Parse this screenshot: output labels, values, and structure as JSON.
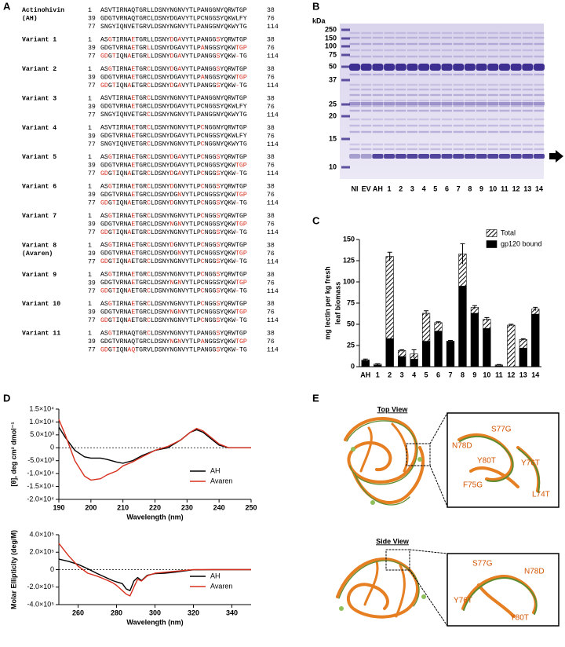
{
  "panels": [
    "A",
    "B",
    "C",
    "D",
    "E"
  ],
  "sequences": {
    "entries": [
      {
        "name": [
          "Actinohivin",
          "(AH)"
        ],
        "lines": [
          {
            "start": 1,
            "seq": "ASVTIRNAQTGRLLDSNYNGNVYTLPANGGNYQRWTGP",
            "end": 38
          },
          {
            "start": 39,
            "seq": "GDGTVRNAQTGRCLDSNYDGAVYTLPCNGGSYQKWLFY",
            "end": 76
          },
          {
            "start": 77,
            "seq": "SNGYIQNVETGRVLDSNYNGNVYTLPANGGNYQKWYTG",
            "end": 114
          }
        ]
      },
      {
        "name": [
          "Variant 1"
        ],
        "lines": [
          {
            "start": 1,
            "seq": "ASGTIRNAETGRLLDSNYDGAVYTLPANGGSYQRWTGP",
            "end": 38
          },
          {
            "start": 39,
            "seq": "GDGTVRNAETGRLLDSNYDGAVYTLPANGGSYQKWTGP",
            "end": 76
          },
          {
            "start": 77,
            "seq": "GDGTIQNAETGRLLDSNYDGAVYTLPANGGSYQKW-TG",
            "end": 114
          }
        ]
      },
      {
        "name": [
          "Variant 2"
        ],
        "lines": [
          {
            "start": 1,
            "seq": "ASGTIRNAETGRCLDSNYDGAVYTLPANGGSYQRWTGP",
            "end": 38
          },
          {
            "start": 39,
            "seq": "GDGTVRNAETGRCLDSNYDGAVYTLPANGGSYQKWTGP",
            "end": 76
          },
          {
            "start": 77,
            "seq": "GDGTIQNAETGRCLDSNYDGAVYTLPANGGSYQKW-TG",
            "end": 114
          }
        ]
      },
      {
        "name": [
          "Variant 3"
        ],
        "lines": [
          {
            "start": 1,
            "seq": "ASVTIRNAETGRCLDSNYNGNVYTLPANGGNYQRWTGP",
            "end": 38
          },
          {
            "start": 39,
            "seq": "GDGTVRNAETGRCLDSNYDGAVYTLPCNGGSYQKWLFY",
            "end": 76
          },
          {
            "start": 77,
            "seq": "SNGYIQNVETGRCLDSNYNGNVYTLPANGGNYQKWYTG",
            "end": 114
          }
        ]
      },
      {
        "name": [
          "Variant 4"
        ],
        "lines": [
          {
            "start": 1,
            "seq": "ASVTIRNAETGRCLDSNYNGNVYTLPCNGGNYQRWTGP",
            "end": 38
          },
          {
            "start": 39,
            "seq": "GDGTVRNAETGRCLDSNYDGAVYTLPCNGGSYQKWLFY",
            "end": 76
          },
          {
            "start": 77,
            "seq": "SNGYIQNVETGRCLDSNYNGNVYTLPCNGGNYQKWYTG",
            "end": 114
          }
        ]
      },
      {
        "name": [
          "Variant 5"
        ],
        "lines": [
          {
            "start": 1,
            "seq": "ASGTIRNAETGRCLDSNYDGAVYTLPCNGGSYQRWTGP",
            "end": 38
          },
          {
            "start": 39,
            "seq": "GDGTVRNAETGRCLDSNYDGAVYTLPCNGGSYQKWTGP",
            "end": 76
          },
          {
            "start": 77,
            "seq": "GDGTIQNAETGRCLDSNYDGAVYTLPCNGGSYQKW-TG",
            "end": 114
          }
        ]
      },
      {
        "name": [
          "Variant 6"
        ],
        "lines": [
          {
            "start": 1,
            "seq": "ASGTIRNAETGRCLDSNYDGNVYTLPCNGGSYQRWTGP",
            "end": 38
          },
          {
            "start": 39,
            "seq": "GDGTVRNAETGRCLDSNYDGNVYTLPCNGGSYQKWTGP",
            "end": 76
          },
          {
            "start": 77,
            "seq": "GDGTIQNAETGRCLDSNYDGNVYTLPCNGGSYQKW-TG",
            "end": 114
          }
        ]
      },
      {
        "name": [
          "Variant 7"
        ],
        "lines": [
          {
            "start": 1,
            "seq": "ASGTIRNAETGRCLDSNYNGNVYTLPCNGGSYQRWTGP",
            "end": 38
          },
          {
            "start": 39,
            "seq": "GDGTVRNAETGRCLDSNYNGNVYTLPCNGGSYQKWTGP",
            "end": 76
          },
          {
            "start": 77,
            "seq": "GDGTIQNAETGRCLDSNYNGNVYTLPCNGGSYQKW-TG",
            "end": 114
          }
        ]
      },
      {
        "name": [
          "Variant 8",
          "(Avaren)"
        ],
        "lines": [
          {
            "start": 1,
            "seq": "ASGTIRNAETGRCLDSNYDGNVYTLPCNGGSYQRWTGP",
            "end": 38
          },
          {
            "start": 39,
            "seq": "GDGTVRNAETGRCLDSNYDGNVYTLPCNGGSYQKWTGP",
            "end": 76
          },
          {
            "start": 77,
            "seq": "GDGTIQNAETGRCLDSNYNGNVYTLPCNGGSYQKW-TG",
            "end": 114
          }
        ]
      },
      {
        "name": [
          "Variant 9"
        ],
        "lines": [
          {
            "start": 1,
            "seq": "ASGTIRNAETGRCLDSNYNGNVYTLPCNGGSYQRWTGP",
            "end": 38
          },
          {
            "start": 39,
            "seq": "GDGTVRNAETGRCLDSNYNGNVYTLPCNGGSYQKWTGP",
            "end": 76
          },
          {
            "start": 77,
            "seq": "GDGTIQNAETGRCLDSNYNGNVYTLPCNGGSYQKW-TG",
            "end": 114
          }
        ]
      },
      {
        "name": [
          "Variant 10"
        ],
        "lines": [
          {
            "start": 1,
            "seq": "ASGTIRNAETGRCLDSNYNGNVYTLPCNGGSYQRWTGP",
            "end": 38
          },
          {
            "start": 39,
            "seq": "GDGTVRNAETGRCLDSNYNGNVYTLPCNGGSYQKWTGP",
            "end": 76
          },
          {
            "start": 77,
            "seq": "GDGTIQNAETGRCLDSNYNGNVYTLPCNGGSYQKW-TG",
            "end": 114
          }
        ]
      },
      {
        "name": [
          "Variant 11"
        ],
        "lines": [
          {
            "start": 1,
            "seq": "ASGTIRNAQTGRCLDSNYNGNVYTLPANGGSYQRWTGP",
            "end": 38
          },
          {
            "start": 39,
            "seq": "GDGTVRNAQTGRCLDSNYNGNVYTLPANGGSYQKWTGP",
            "end": 76
          },
          {
            "start": 77,
            "seq": "GDGTIQNAQTGRVLDSNYNGNVYTLPANGGSYQKW-TG",
            "end": 114
          }
        ]
      }
    ],
    "mutation_color": "#d7301f"
  },
  "gel": {
    "unit": "kDa",
    "markers": [
      250,
      150,
      100,
      75,
      50,
      37,
      25,
      20,
      15,
      10
    ],
    "lanes": [
      "NI",
      "EV",
      "AH",
      "1",
      "2",
      "3",
      "4",
      "5",
      "6",
      "7",
      "8",
      "9",
      "10",
      "11",
      "12",
      "13",
      "14"
    ]
  },
  "chart_data": [
    {
      "type": "bar",
      "overlap": true,
      "ylabel": [
        "mg lectin per kg fresh",
        "leaf biomass"
      ],
      "categories": [
        "AH",
        "1",
        "2",
        "3",
        "4",
        "5",
        "6",
        "7",
        "8",
        "9",
        "10",
        "11",
        "12",
        "13",
        "14"
      ],
      "series": [
        {
          "name": "Total",
          "color": "#000000",
          "pattern": "hatch",
          "values": [
            8,
            3,
            130,
            19,
            15,
            63,
            52,
            30,
            133,
            70,
            56,
            2,
            49,
            32,
            68
          ],
          "errors": [
            1,
            0.5,
            5,
            1,
            5,
            3,
            1,
            1,
            12,
            2,
            2,
            0.5,
            1,
            1,
            2
          ]
        },
        {
          "name": "gp120 bound",
          "color": "#000000",
          "values": [
            7,
            2,
            33,
            12,
            9,
            30,
            42,
            30,
            95,
            63,
            45,
            1,
            0,
            22,
            62
          ]
        }
      ],
      "ylim": [
        0,
        150
      ],
      "yticks": [
        0,
        25,
        50,
        75,
        100,
        125,
        150
      ],
      "legend": "top-right"
    },
    {
      "type": "line",
      "xlabel": "Wavelength (nm)",
      "ylabel": "[θ], deg cm² dmol⁻¹",
      "x": [
        190,
        192,
        195,
        198,
        200,
        203,
        205,
        208,
        210,
        213,
        216,
        220,
        224,
        228,
        231,
        233,
        235,
        238,
        240,
        243,
        246,
        250
      ],
      "series": [
        {
          "name": "AH",
          "color": "#000000",
          "values": [
            8000,
            4000,
            -1000,
            -3500,
            -4000,
            -4000,
            -4500,
            -5500,
            -6000,
            -5000,
            -3000,
            -1000,
            0,
            3000,
            6000,
            7000,
            6000,
            3000,
            1000,
            0,
            0,
            0
          ]
        },
        {
          "name": "Avaren",
          "color": "#d7301f",
          "values": [
            11000,
            5000,
            -5000,
            -11000,
            -12500,
            -12000,
            -10500,
            -9000,
            -7000,
            -5500,
            -3500,
            -1000,
            500,
            3000,
            6000,
            7500,
            6500,
            3500,
            1500,
            0,
            0,
            0
          ]
        }
      ],
      "xlim": [
        190,
        250
      ],
      "xticks": [
        190,
        200,
        210,
        220,
        230,
        240,
        250
      ],
      "ylim": [
        -20000,
        15000
      ],
      "yticks": [
        {
          "value": -20000,
          "label": "-2.0×10⁴"
        },
        {
          "value": -15000,
          "label": "-1.5×10⁴"
        },
        {
          "value": -10000,
          "label": "-1.0×10⁴"
        },
        {
          "value": -5000,
          "label": "-5.0×10³"
        },
        0,
        {
          "value": 5000,
          "label": "5.0×10³"
        },
        {
          "value": 10000,
          "label": "1.0×10⁴"
        },
        {
          "value": 15000,
          "label": "1.5×10⁴"
        }
      ],
      "zero_line": true,
      "legend": "lower-right"
    },
    {
      "type": "line",
      "xlabel": "Wavelength (nm)",
      "ylabel": "Molar Ellipticity (deg/M)",
      "x": [
        250,
        255,
        260,
        265,
        270,
        275,
        278,
        280,
        283,
        285,
        287,
        289,
        291,
        293,
        296,
        300,
        305,
        310,
        315,
        320,
        330,
        340,
        350
      ],
      "series": [
        {
          "name": "AH",
          "color": "#000000",
          "values": [
            120000,
            95000,
            60000,
            10000,
            -45000,
            -95000,
            -125000,
            -140000,
            -160000,
            -220000,
            -240000,
            -130000,
            -90000,
            -125000,
            -65000,
            -45000,
            -40000,
            -30000,
            -15000,
            -2000,
            0,
            0,
            0
          ]
        },
        {
          "name": "Avaren",
          "color": "#d7301f",
          "values": [
            300000,
            160000,
            40000,
            -40000,
            -75000,
            -120000,
            -150000,
            -180000,
            -240000,
            -280000,
            -300000,
            -200000,
            -110000,
            -130000,
            -70000,
            -40000,
            -30000,
            -20000,
            -10000,
            0,
            0,
            0,
            0
          ]
        }
      ],
      "xlim": [
        250,
        350
      ],
      "xticks": [
        260,
        280,
        300,
        320,
        340
      ],
      "ylim": [
        -400000,
        400000
      ],
      "yticks": [
        {
          "value": -400000,
          "label": "-4.0×10⁵"
        },
        {
          "value": -200000,
          "label": "-2.0×10⁵"
        },
        0,
        {
          "value": 200000,
          "label": "2.0×10⁵"
        },
        {
          "value": 400000,
          "label": "4.0×10⁵"
        }
      ],
      "zero_line": true,
      "legend": "lower-right"
    }
  ],
  "structure": {
    "top_title": "Top View",
    "side_title": "Side View",
    "top_labels": [
      "N78D",
      "S77G",
      "Y80T",
      "Y76T",
      "F75G",
      "L74T"
    ],
    "side_labels": [
      "S77G",
      "N78D",
      "Y76T",
      "Y80T"
    ]
  }
}
